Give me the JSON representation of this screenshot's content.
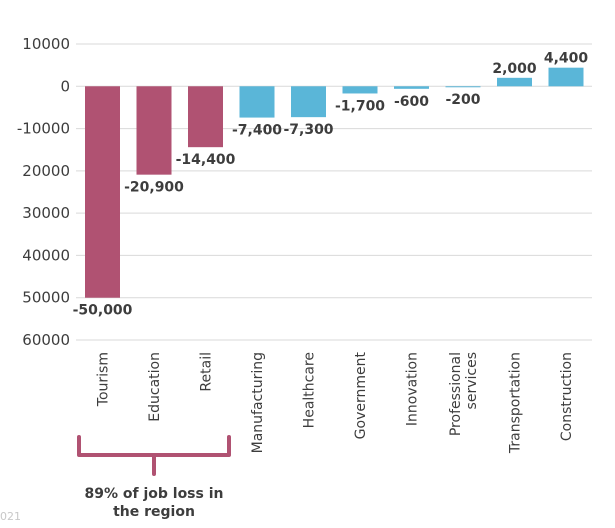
{
  "chart_data": {
    "type": "bar",
    "title": "",
    "xlabel": "",
    "ylabel": "",
    "ylim": [
      -60000,
      10000
    ],
    "yticks": [
      {
        "value": 10000,
        "label": "10000"
      },
      {
        "value": 0,
        "label": "0"
      },
      {
        "value": -10000,
        "label": "-10000"
      },
      {
        "value": -20000,
        "label": "20000"
      },
      {
        "value": -30000,
        "label": "30000"
      },
      {
        "value": -40000,
        "label": "40000"
      },
      {
        "value": -50000,
        "label": "50000"
      },
      {
        "value": -60000,
        "label": "60000"
      }
    ],
    "categories": [
      {
        "label": [
          "Tourism"
        ],
        "value": -50000,
        "value_label": "-50,000",
        "group": "major"
      },
      {
        "label": [
          "Education"
        ],
        "value": -20900,
        "value_label": "-20,900",
        "group": "major"
      },
      {
        "label": [
          "Retail"
        ],
        "value": -14400,
        "value_label": "-14,400",
        "group": "major"
      },
      {
        "label": [
          "Manufacturing"
        ],
        "value": -7400,
        "value_label": "-7,400",
        "group": "other"
      },
      {
        "label": [
          "Healthcare"
        ],
        "value": -7300,
        "value_label": "-7,300",
        "group": "other"
      },
      {
        "label": [
          "Government"
        ],
        "value": -1700,
        "value_label": "-1,700",
        "group": "other"
      },
      {
        "label": [
          "Innovation"
        ],
        "value": -600,
        "value_label": "-600",
        "group": "other"
      },
      {
        "label": [
          "Professional",
          "services"
        ],
        "value": -200,
        "value_label": "-200",
        "group": "other"
      },
      {
        "label": [
          "Transportation"
        ],
        "value": 2000,
        "value_label": "2,000",
        "group": "other"
      },
      {
        "label": [
          "Construction"
        ],
        "value": 4400,
        "value_label": "4,400",
        "group": "other"
      }
    ],
    "colors": {
      "major": "#b05272",
      "other": "#5ab6d8",
      "brace": "#b05272",
      "grid": "#d9d9d9"
    },
    "annotation": {
      "lines": [
        "89% of job loss in",
        "the region"
      ],
      "spans_groups": "major"
    }
  },
  "footer_text": "021"
}
